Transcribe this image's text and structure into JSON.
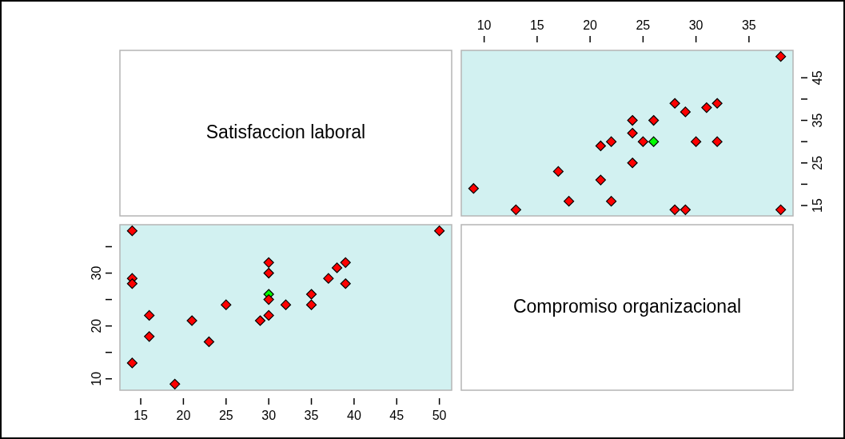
{
  "chart_data": [
    {
      "type": "other",
      "title": "Satisfaccion laboral"
    },
    {
      "type": "scatter",
      "marker": "diamond",
      "grid": false,
      "x": [
        38,
        28,
        32,
        31,
        29,
        24,
        26,
        24,
        21,
        22,
        25,
        26,
        30,
        32,
        24,
        17,
        21,
        9,
        18,
        22,
        13,
        28,
        29,
        38
      ],
      "values": [
        50,
        39,
        39,
        38,
        37,
        35,
        35,
        32,
        29,
        30,
        30,
        30,
        30,
        30,
        25,
        23,
        21,
        19,
        16,
        16,
        14,
        14,
        14,
        14
      ],
      "colors": [
        "#ff0000",
        "#ff0000",
        "#ff0000",
        "#ff0000",
        "#ff0000",
        "#ff0000",
        "#ff0000",
        "#ff0000",
        "#ff0000",
        "#ff0000",
        "#ff0000",
        "#00ff00",
        "#ff0000",
        "#ff0000",
        "#ff0000",
        "#ff0000",
        "#ff0000",
        "#ff0000",
        "#ff0000",
        "#ff0000",
        "#ff0000",
        "#ff0000",
        "#ff0000",
        "#ff0000"
      ],
      "xlim": [
        7.84,
        39.16
      ],
      "xticks": [
        10,
        15,
        20,
        25,
        30,
        35
      ],
      "ylim": [
        12.56,
        51.44
      ],
      "yticks": [
        15,
        {
          "value": 20,
          "label": null
        },
        25,
        {
          "value": 30,
          "label": null
        },
        35,
        {
          "value": 40,
          "label": null
        },
        45
      ]
    },
    {
      "type": "scatter",
      "marker": "diamond",
      "grid": false,
      "x": [
        14,
        50,
        30,
        39,
        38,
        30,
        14,
        37,
        14,
        39,
        30,
        35,
        30,
        25,
        32,
        35,
        16,
        30,
        21,
        29,
        16,
        23,
        14,
        19
      ],
      "values": [
        38,
        38,
        32,
        32,
        31,
        30,
        29,
        29,
        28,
        28,
        26,
        26,
        25,
        24,
        24,
        24,
        22,
        22,
        21,
        21,
        18,
        17,
        13,
        9
      ],
      "colors": [
        "#ff0000",
        "#ff0000",
        "#ff0000",
        "#ff0000",
        "#ff0000",
        "#ff0000",
        "#ff0000",
        "#ff0000",
        "#ff0000",
        "#ff0000",
        "#00ff00",
        "#ff0000",
        "#ff0000",
        "#ff0000",
        "#ff0000",
        "#ff0000",
        "#ff0000",
        "#ff0000",
        "#ff0000",
        "#ff0000",
        "#ff0000",
        "#ff0000",
        "#ff0000",
        "#ff0000"
      ],
      "xlim": [
        12.56,
        51.44
      ],
      "xticks": [
        15,
        20,
        25,
        30,
        35,
        40,
        45,
        50
      ],
      "ylim": [
        7.84,
        39.16
      ],
      "yticks": [
        10,
        {
          "value": 15,
          "label": null
        },
        20,
        {
          "value": 25,
          "label": null
        },
        30,
        {
          "value": 35,
          "label": null
        }
      ]
    },
    {
      "type": "other",
      "title": "Compromiso organizacional"
    }
  ]
}
